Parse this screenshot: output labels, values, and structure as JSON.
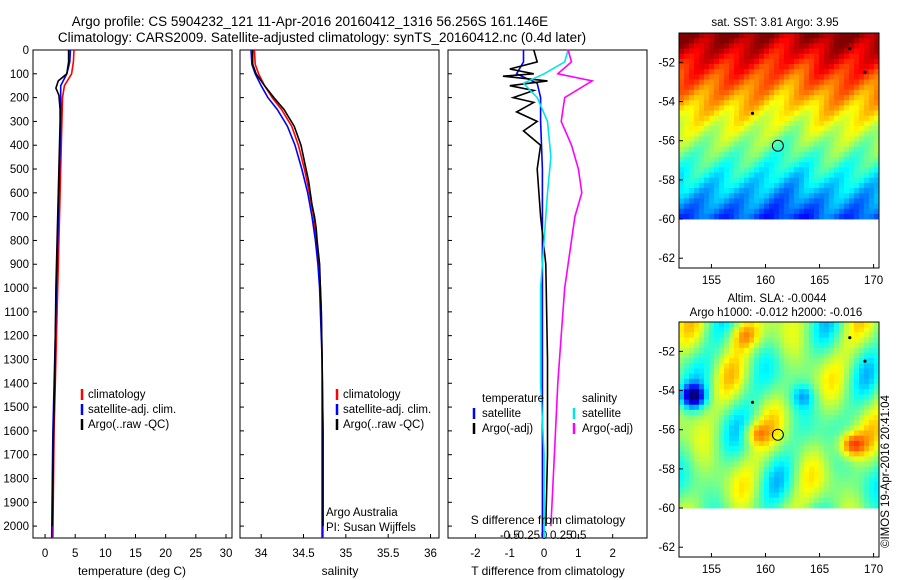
{
  "header": {
    "title_line1": "Argo profile: CS 5904232_121 11-Apr-2016 20160412_1316 56.256S 161.146E",
    "title_line2": "Climatology: CARS2009. Satellite-adjusted climatology: synTS_20160412.nc (0.4d later)"
  },
  "colors": {
    "climatology": "#ff0000",
    "satellite": "#0000ff",
    "argo": "#000000",
    "salinity_satellite": "#00e5e5",
    "salinity_argo": "#ff00ff"
  },
  "chart_data": [
    {
      "type": "line",
      "id": "temperature",
      "xlabel": "temperature (deg C)",
      "xlim": [
        -2,
        31
      ],
      "xticks": [
        "0",
        "5",
        "10",
        "15",
        "20",
        "25",
        "30"
      ],
      "ylim": [
        0,
        2050
      ],
      "yticks": [
        "0",
        "100",
        "200",
        "300",
        "400",
        "500",
        "600",
        "700",
        "800",
        "900",
        "1000",
        "1100",
        "1200",
        "1300",
        "1400",
        "1500",
        "1600",
        "1700",
        "1800",
        "1900",
        "2000"
      ],
      "legend": {
        "entries": [
          "climatology",
          "satellite-adj. clim.",
          "Argo(..raw -QC)"
        ],
        "placement": "lower-center"
      },
      "series": [
        {
          "name": "climatology",
          "color": "#ff0000",
          "x": [
            4.8,
            4.7,
            4.4,
            3.2,
            2.9,
            2.8,
            2.7,
            2.6,
            2.5,
            2.4,
            2.3,
            2.2,
            2.1,
            2.0,
            1.9,
            1.8,
            1.7,
            1.6,
            1.5,
            1.4,
            1.3
          ],
          "y": [
            0,
            50,
            100,
            150,
            200,
            300,
            400,
            500,
            600,
            700,
            800,
            900,
            1000,
            1100,
            1200,
            1300,
            1400,
            1500,
            1600,
            1800,
            2050
          ]
        },
        {
          "name": "satellite-adj. clim.",
          "color": "#0000ff",
          "x": [
            4.2,
            4.1,
            3.6,
            2.6,
            2.6,
            2.6,
            2.5,
            2.4,
            2.3,
            2.2,
            2.1,
            2.0,
            1.9,
            1.8,
            1.7,
            1.6,
            1.5,
            1.4,
            1.3,
            1.2,
            1.1
          ],
          "y": [
            0,
            50,
            100,
            150,
            200,
            300,
            400,
            500,
            600,
            700,
            800,
            900,
            1000,
            1100,
            1200,
            1300,
            1400,
            1500,
            1600,
            1800,
            2050
          ]
        },
        {
          "name": "Argo(..raw -QC)",
          "color": "#000000",
          "x": [
            3.9,
            3.9,
            3.6,
            2.2,
            1.8,
            2.3,
            2.5,
            2.5,
            2.4,
            2.3,
            2.2,
            2.1,
            2.0,
            1.9,
            1.8,
            1.7,
            1.6,
            1.5,
            1.4,
            1.3,
            1.2
          ],
          "y": [
            0,
            50,
            100,
            130,
            160,
            190,
            250,
            300,
            400,
            500,
            600,
            700,
            800,
            900,
            1000,
            1200,
            1400,
            1500,
            1600,
            1800,
            2000
          ]
        }
      ]
    },
    {
      "type": "line",
      "id": "salinity",
      "xlabel": "salinity",
      "xlim": [
        33.75,
        36.1
      ],
      "xticks": [
        "34",
        "34.5",
        "35",
        "35.5",
        "36"
      ],
      "ylim": [
        0,
        2050
      ],
      "legend": {
        "entries": [
          "climatology",
          "satellite-adj. clim.",
          "Argo(..raw -QC)"
        ],
        "placement": "lower-center"
      },
      "annotations": [
        "Argo Australia",
        "PI: Susan Wijffels"
      ],
      "series": [
        {
          "name": "climatology",
          "color": "#ff0000",
          "x": [
            33.92,
            33.93,
            33.97,
            34.04,
            34.13,
            34.24,
            34.36,
            34.44,
            34.51,
            34.57,
            34.62,
            34.65,
            34.68,
            34.7,
            34.71,
            34.72,
            34.73,
            34.73
          ],
          "y": [
            0,
            60,
            100,
            150,
            200,
            250,
            320,
            400,
            500,
            600,
            700,
            800,
            900,
            1000,
            1100,
            1300,
            1600,
            2050
          ]
        },
        {
          "name": "satellite-adj. clim.",
          "color": "#0000ff",
          "x": [
            33.88,
            33.89,
            33.93,
            34.0,
            34.08,
            34.19,
            34.31,
            34.4,
            34.48,
            34.55,
            34.6,
            34.64,
            34.67,
            34.69,
            34.7,
            34.72,
            34.72,
            34.72
          ],
          "y": [
            0,
            60,
            100,
            150,
            200,
            250,
            320,
            400,
            500,
            600,
            700,
            800,
            900,
            1000,
            1100,
            1300,
            1600,
            2050
          ]
        },
        {
          "name": "Argo(..raw -QC)",
          "color": "#000000",
          "x": [
            33.9,
            33.9,
            33.94,
            34.04,
            34.15,
            34.27,
            34.39,
            34.47,
            34.5,
            34.56,
            34.6,
            34.63,
            34.65,
            34.66,
            34.69,
            34.7,
            34.71,
            34.72,
            34.73,
            34.73
          ],
          "y": [
            0,
            60,
            100,
            150,
            200,
            250,
            320,
            400,
            450,
            550,
            650,
            700,
            750,
            800,
            900,
            1000,
            1100,
            1300,
            1600,
            2000
          ]
        }
      ]
    },
    {
      "type": "line",
      "id": "difference",
      "xlabel_top": "S difference from climatology",
      "xlabel_bottom": "T difference from climatology",
      "xlim_T": [
        -2.8,
        3.0
      ],
      "xticks_T": [
        "-2",
        "-1",
        "0",
        "1",
        "2"
      ],
      "xticks_S": [
        "-0.5",
        "-0.25",
        "0",
        "0.25",
        "0.5"
      ],
      "ylim": [
        0,
        2050
      ],
      "legend": {
        "columns": [
          {
            "heading": "temperature",
            "entries": [
              "satellite",
              "Argo(-adj)"
            ]
          },
          {
            "heading": "salinity",
            "entries": [
              "satellite",
              "Argo(-adj)"
            ]
          }
        ],
        "placement": "lower-center"
      },
      "series": [
        {
          "name": "satellite",
          "group": "temperature",
          "color": "#0000ff",
          "x": [
            -0.6,
            -0.6,
            -0.8,
            -0.2,
            -0.1,
            -0.1,
            -0.05,
            -0.05,
            -0.05,
            -0.05,
            -0.05
          ],
          "y": [
            0,
            50,
            100,
            140,
            200,
            300,
            500,
            800,
            1200,
            1600,
            2050
          ]
        },
        {
          "name": "Argo(-adj)",
          "group": "temperature",
          "color": "#000000",
          "x": [
            -0.3,
            -0.2,
            -1.0,
            -0.3,
            -1.2,
            0.1,
            -1.0,
            -0.3,
            -0.9,
            -0.3,
            -0.8,
            -0.2,
            -0.6,
            -0.1,
            -0.2,
            -0.1,
            0.05,
            0.1,
            0.1,
            0.05
          ],
          "y": [
            0,
            50,
            80,
            100,
            110,
            130,
            150,
            170,
            200,
            220,
            260,
            300,
            340,
            400,
            500,
            700,
            900,
            1300,
            1700,
            2000
          ]
        },
        {
          "name": "satellite",
          "group": "salinity",
          "color": "#00e5e5",
          "x": [
            0.35,
            0.3,
            0.0,
            -0.3,
            -0.1,
            0.05,
            0.1,
            0.05,
            0.0,
            -0.05,
            -0.05,
            -0.05,
            0.0,
            0.0
          ],
          "y": [
            0,
            50,
            100,
            140,
            200,
            300,
            450,
            600,
            800,
            1000,
            1200,
            1400,
            1700,
            2050
          ]
        },
        {
          "name": "Argo(-adj)",
          "group": "salinity",
          "color": "#ff00ff",
          "x": [
            0.35,
            0.4,
            0.2,
            0.7,
            0.3,
            0.25,
            0.4,
            0.5,
            0.55,
            0.45,
            0.4,
            0.35,
            0.3,
            0.25,
            0.2,
            0.15,
            0.1
          ],
          "y": [
            0,
            50,
            100,
            130,
            200,
            300,
            400,
            500,
            600,
            700,
            800,
            900,
            1000,
            1200,
            1400,
            1700,
            2000
          ]
        }
      ]
    },
    {
      "type": "heatmap",
      "id": "sst-map",
      "title": "sat. SST: 3.81 Argo: 3.95",
      "colormap": "jet",
      "xlim": [
        152,
        170.5
      ],
      "ylim": [
        -62.5,
        -50.5
      ],
      "data_ylim": [
        -60,
        -50.5
      ],
      "xticks": [
        "155",
        "160",
        "165",
        "170"
      ],
      "yticks": [
        "-52",
        "-54",
        "-56",
        "-58",
        "-60",
        "-62"
      ],
      "marker": {
        "lon": 161.146,
        "lat": -56.256
      }
    },
    {
      "type": "heatmap",
      "id": "sla-map",
      "title": "Altim. SLA: -0.0044",
      "subtitle": "Argo h1000: -0.012 h2000: -0.016",
      "colormap": "jet",
      "xlim": [
        152,
        170.5
      ],
      "ylim": [
        -62.5,
        -50.5
      ],
      "data_ylim": [
        -60,
        -50.5
      ],
      "xticks": [
        "155",
        "160",
        "165",
        "170"
      ],
      "yticks": [
        "-52",
        "-54",
        "-56",
        "-58",
        "-60",
        "-62"
      ],
      "marker": {
        "lon": 161.146,
        "lat": -56.256
      }
    }
  ],
  "footer": {
    "credit": "©IMOS 19-Apr-2016 20:41:04"
  }
}
